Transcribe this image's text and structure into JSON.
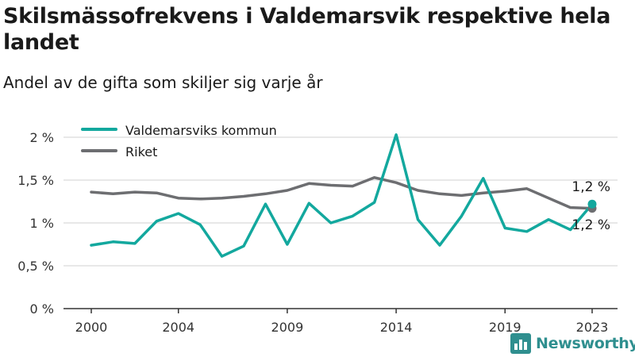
{
  "title": "Skilsmässofrekvens i Valdemarsvik respektive hela landet",
  "subtitle": "Andel av de gifta som skiljer sig varje år",
  "brand": "Newsworthy",
  "colors": {
    "valdemarsvik": "#13a89e",
    "riket": "#6d6e71",
    "grid": "#d9d9d9",
    "axis": "#333333",
    "brand": "#2f8f8f"
  },
  "chart_data": {
    "type": "line",
    "x": [
      2000,
      2001,
      2002,
      2003,
      2004,
      2005,
      2006,
      2007,
      2008,
      2009,
      2010,
      2011,
      2012,
      2013,
      2014,
      2015,
      2016,
      2017,
      2018,
      2019,
      2020,
      2021,
      2022,
      2023
    ],
    "x_ticks": [
      "2000",
      "2004",
      "2009",
      "2014",
      "2019",
      "2023"
    ],
    "x_tick_values": [
      2000,
      2004,
      2009,
      2014,
      2019,
      2023
    ],
    "y_ticks": [
      "0 %",
      "0,5 %",
      "1 %",
      "1,5 %",
      "2 %"
    ],
    "y_tick_values": [
      0,
      0.5,
      1,
      1.5,
      2
    ],
    "ylim": [
      0,
      2
    ],
    "xlim": [
      2000,
      2023
    ],
    "grid": "horizontal",
    "legend_position": "top-left",
    "series": [
      {
        "name": "Valdemarsviks kommun",
        "color": "#13a89e",
        "values": [
          0.74,
          0.78,
          0.76,
          1.02,
          1.11,
          0.98,
          0.61,
          0.73,
          1.22,
          0.75,
          1.23,
          1.0,
          1.08,
          1.24,
          2.03,
          1.04,
          0.74,
          1.08,
          1.52,
          0.94,
          0.9,
          1.04,
          0.92,
          1.22
        ],
        "end_label": "1,2 %"
      },
      {
        "name": "Riket",
        "color": "#6d6e71",
        "values": [
          1.36,
          1.34,
          1.36,
          1.35,
          1.29,
          1.28,
          1.29,
          1.31,
          1.34,
          1.38,
          1.46,
          1.44,
          1.43,
          1.53,
          1.47,
          1.38,
          1.34,
          1.32,
          1.35,
          1.37,
          1.4,
          1.29,
          1.18,
          1.17
        ],
        "end_label": "1,2 %"
      }
    ]
  }
}
